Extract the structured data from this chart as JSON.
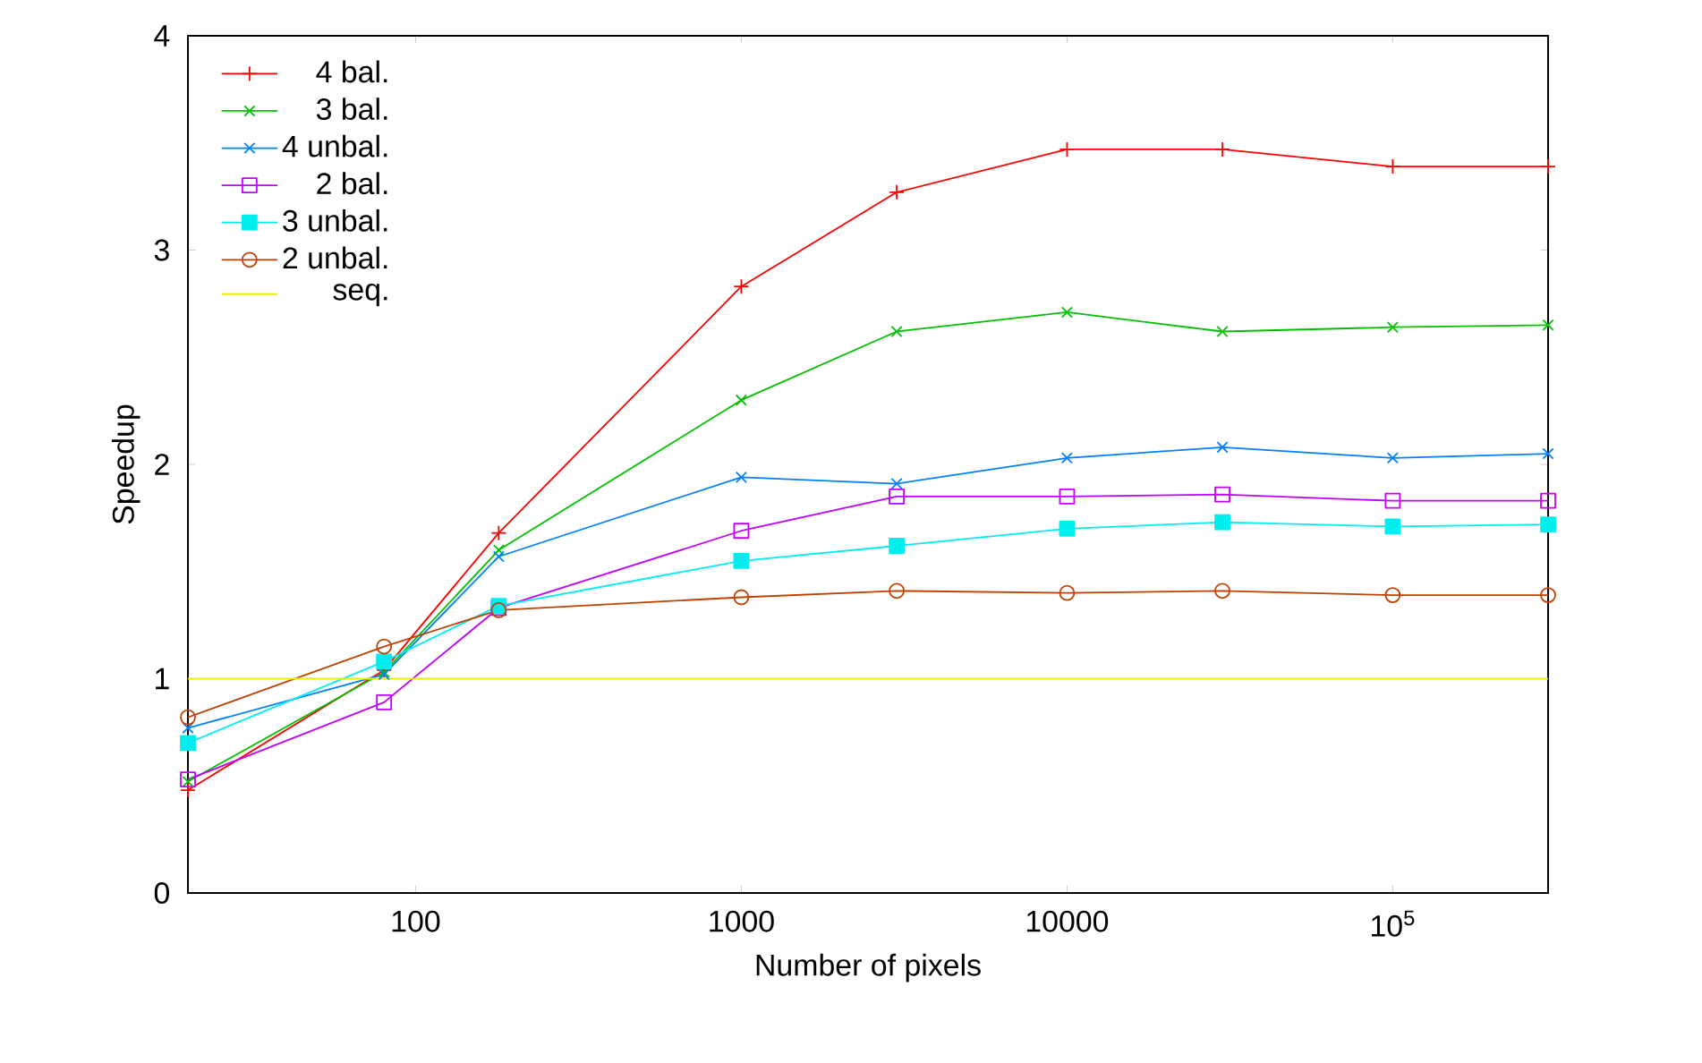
{
  "chart_data": {
    "type": "line",
    "xlabel": "Number of pixels",
    "ylabel": "Speedup",
    "xlim": [
      20,
      300000
    ],
    "ylim": [
      0,
      4
    ],
    "xticks": [
      100,
      1000,
      10000,
      {
        "value": 100000,
        "label": "10$^{5}$"
      }
    ],
    "yticks": [
      0,
      1,
      2,
      3,
      4
    ],
    "log": "x",
    "legend": "top left",
    "series": [
      {
        "name": "4 bal.",
        "color": "#ff0000",
        "marker": "plus",
        "x": [
          20,
          80,
          180,
          1000,
          3000,
          10000,
          30000,
          100000,
          300000
        ],
        "values": [
          0.48,
          1.04,
          1.68,
          2.83,
          3.27,
          3.47,
          3.47,
          3.39,
          3.39
        ]
      },
      {
        "name": "3 bal.",
        "color": "#00c000",
        "marker": "cross",
        "x": [
          20,
          80,
          180,
          1000,
          3000,
          10000,
          30000,
          100000,
          300000
        ],
        "values": [
          0.52,
          1.03,
          1.6,
          2.3,
          2.62,
          2.71,
          2.62,
          2.64,
          2.65
        ]
      },
      {
        "name": "4 unbal.",
        "color": "#0080ff",
        "marker": "cross",
        "x": [
          20,
          80,
          180,
          1000,
          3000,
          10000,
          30000,
          100000,
          300000
        ],
        "values": [
          0.77,
          1.02,
          1.57,
          1.94,
          1.91,
          2.03,
          2.08,
          2.03,
          2.05
        ]
      },
      {
        "name": "2 bal.",
        "color": "#c000ff",
        "marker": "square",
        "x": [
          20,
          80,
          180,
          1000,
          3000,
          10000,
          30000,
          100000,
          300000
        ],
        "values": [
          0.53,
          0.89,
          1.33,
          1.69,
          1.85,
          1.85,
          1.86,
          1.83,
          1.83
        ]
      },
      {
        "name": "3 unbal.",
        "color": "#00eeee",
        "marker": "square_filled",
        "x": [
          20,
          80,
          180,
          1000,
          3000,
          10000,
          30000,
          100000,
          300000
        ],
        "values": [
          0.7,
          1.08,
          1.34,
          1.55,
          1.62,
          1.7,
          1.73,
          1.71,
          1.72
        ]
      },
      {
        "name": "2 unbal.",
        "color": "#c04000",
        "marker": "circle",
        "x": [
          20,
          80,
          180,
          1000,
          3000,
          10000,
          30000,
          100000,
          300000
        ],
        "values": [
          0.82,
          1.15,
          1.32,
          1.38,
          1.41,
          1.4,
          1.41,
          1.39,
          1.39
        ]
      },
      {
        "name": "seq.",
        "color": "#eeee00",
        "marker": "none",
        "x": [
          20,
          300000
        ],
        "values": [
          1,
          1
        ]
      }
    ]
  }
}
